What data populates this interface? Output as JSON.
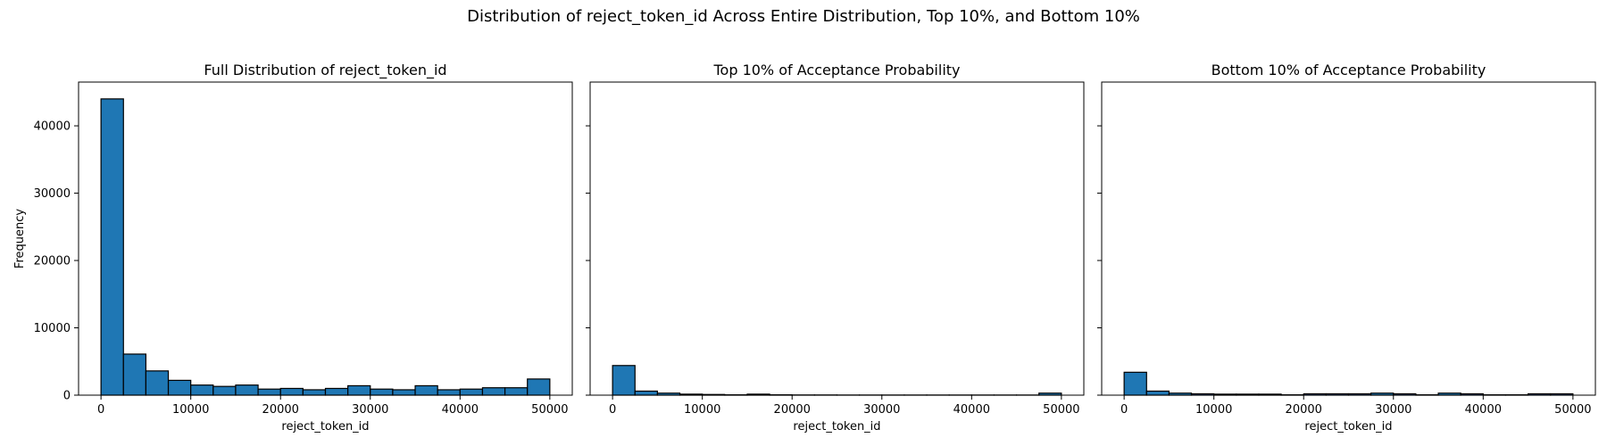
{
  "suptitle": "Distribution of reject_token_id Across Entire Distribution, Top 10%, and Bottom 10%",
  "colors": {
    "bar_fill": "#1f77b4",
    "bar_edge": "#000000"
  },
  "chart_data": [
    {
      "type": "bar",
      "title": "Full Distribution of reject_token_id",
      "xlabel": "reject_token_id",
      "ylabel": "Frequency",
      "xlim": [
        -2500,
        52500
      ],
      "ylim": [
        0,
        46500
      ],
      "xticks": [
        0,
        10000,
        20000,
        30000,
        40000,
        50000
      ],
      "yticks": [
        0,
        10000,
        20000,
        30000,
        40000
      ],
      "bin_width": 2500,
      "bin_starts": [
        0,
        2500,
        5000,
        7500,
        10000,
        12500,
        15000,
        17500,
        20000,
        22500,
        25000,
        27500,
        30000,
        32500,
        35000,
        37500,
        40000,
        42500,
        45000,
        47500
      ],
      "values": [
        44000,
        6100,
        3600,
        2200,
        1500,
        1300,
        1500,
        900,
        1000,
        800,
        1000,
        1400,
        900,
        800,
        1400,
        800,
        900,
        1100,
        1100,
        2400
      ]
    },
    {
      "type": "bar",
      "title": "Top 10% of Acceptance Probability",
      "xlabel": "reject_token_id",
      "ylabel": "",
      "xlim": [
        -2500,
        52500
      ],
      "ylim": [
        0,
        46500
      ],
      "xticks": [
        0,
        10000,
        20000,
        30000,
        40000,
        50000
      ],
      "yticks": [
        0,
        10000,
        20000,
        30000,
        40000
      ],
      "bin_width": 2500,
      "bin_starts": [
        0,
        2500,
        5000,
        7500,
        10000,
        12500,
        15000,
        17500,
        20000,
        22500,
        25000,
        27500,
        30000,
        32500,
        35000,
        37500,
        40000,
        42500,
        45000,
        47500
      ],
      "values": [
        4400,
        600,
        300,
        150,
        100,
        50,
        150,
        50,
        30,
        30,
        20,
        20,
        20,
        20,
        20,
        20,
        20,
        20,
        20,
        300
      ]
    },
    {
      "type": "bar",
      "title": "Bottom 10% of Acceptance Probability",
      "xlabel": "reject_token_id",
      "ylabel": "",
      "xlim": [
        -2500,
        52500
      ],
      "ylim": [
        0,
        46500
      ],
      "xticks": [
        0,
        10000,
        20000,
        30000,
        40000,
        50000
      ],
      "yticks": [
        0,
        10000,
        20000,
        30000,
        40000
      ],
      "bin_width": 2500,
      "bin_starts": [
        0,
        2500,
        5000,
        7500,
        10000,
        12500,
        15000,
        17500,
        20000,
        22500,
        25000,
        27500,
        30000,
        32500,
        35000,
        37500,
        40000,
        42500,
        45000,
        47500
      ],
      "values": [
        3400,
        600,
        300,
        200,
        150,
        150,
        150,
        50,
        200,
        200,
        200,
        300,
        200,
        50,
        300,
        200,
        50,
        50,
        200,
        200
      ]
    }
  ]
}
